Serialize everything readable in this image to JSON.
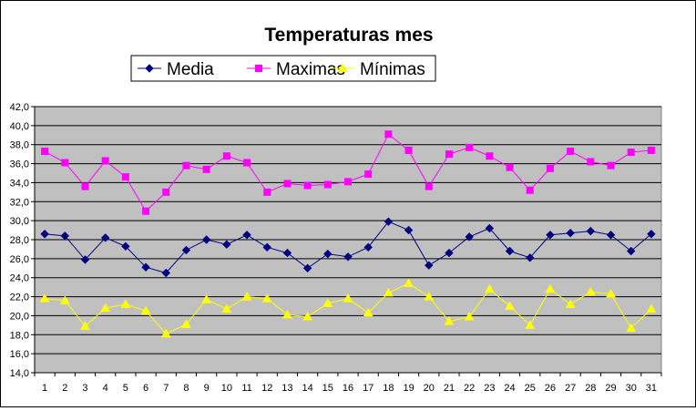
{
  "chart_data": {
    "type": "line",
    "title": "Temperaturas mes",
    "xlabel": "",
    "ylabel": "",
    "ylim": [
      14,
      42
    ],
    "ytick_step": 2,
    "ytick_labels": [
      "14,0",
      "16,0",
      "18,0",
      "20,0",
      "22,0",
      "24,0",
      "26,0",
      "28,0",
      "30,0",
      "32,0",
      "34,0",
      "36,0",
      "38,0",
      "40,0",
      "42,0"
    ],
    "categories": [
      "1",
      "2",
      "3",
      "4",
      "5",
      "6",
      "7",
      "8",
      "9",
      "10",
      "11",
      "12",
      "13",
      "14",
      "15",
      "16",
      "17",
      "18",
      "19",
      "20",
      "21",
      "22",
      "23",
      "24",
      "25",
      "26",
      "27",
      "28",
      "29",
      "30",
      "31"
    ],
    "grid": true,
    "legend_position": "top",
    "plot_background": "#c0c0c0",
    "series": [
      {
        "name": "Media",
        "color": "#000080",
        "marker": "diamond",
        "values": [
          28.6,
          28.4,
          25.9,
          28.2,
          27.3,
          25.1,
          24.5,
          26.9,
          28.0,
          27.5,
          28.5,
          27.2,
          26.6,
          25.0,
          26.5,
          26.2,
          27.2,
          29.9,
          29.0,
          25.3,
          26.6,
          28.3,
          29.2,
          26.8,
          26.1,
          28.5,
          28.7,
          28.9,
          28.5,
          26.8,
          28.6
        ]
      },
      {
        "name": "Maximas",
        "color": "#ff00ff",
        "marker": "square",
        "values": [
          37.3,
          36.1,
          33.6,
          36.3,
          34.6,
          31.0,
          33.0,
          35.8,
          35.4,
          36.8,
          36.1,
          33.0,
          33.9,
          33.7,
          33.8,
          34.1,
          34.9,
          39.1,
          37.4,
          33.6,
          37.0,
          37.7,
          36.8,
          35.6,
          33.2,
          35.5,
          37.3,
          36.2,
          35.8,
          37.2,
          37.4
        ]
      },
      {
        "name": "Mínimas",
        "color": "#ffff00",
        "marker": "triangle",
        "values": [
          21.8,
          21.6,
          18.9,
          20.8,
          21.2,
          20.5,
          18.1,
          19.1,
          21.7,
          20.7,
          22.0,
          21.8,
          20.1,
          19.9,
          21.3,
          21.8,
          20.3,
          22.4,
          23.4,
          22.0,
          19.4,
          19.9,
          22.8,
          21.0,
          19.0,
          22.8,
          21.2,
          22.5,
          22.3,
          18.7,
          20.7
        ]
      }
    ]
  }
}
